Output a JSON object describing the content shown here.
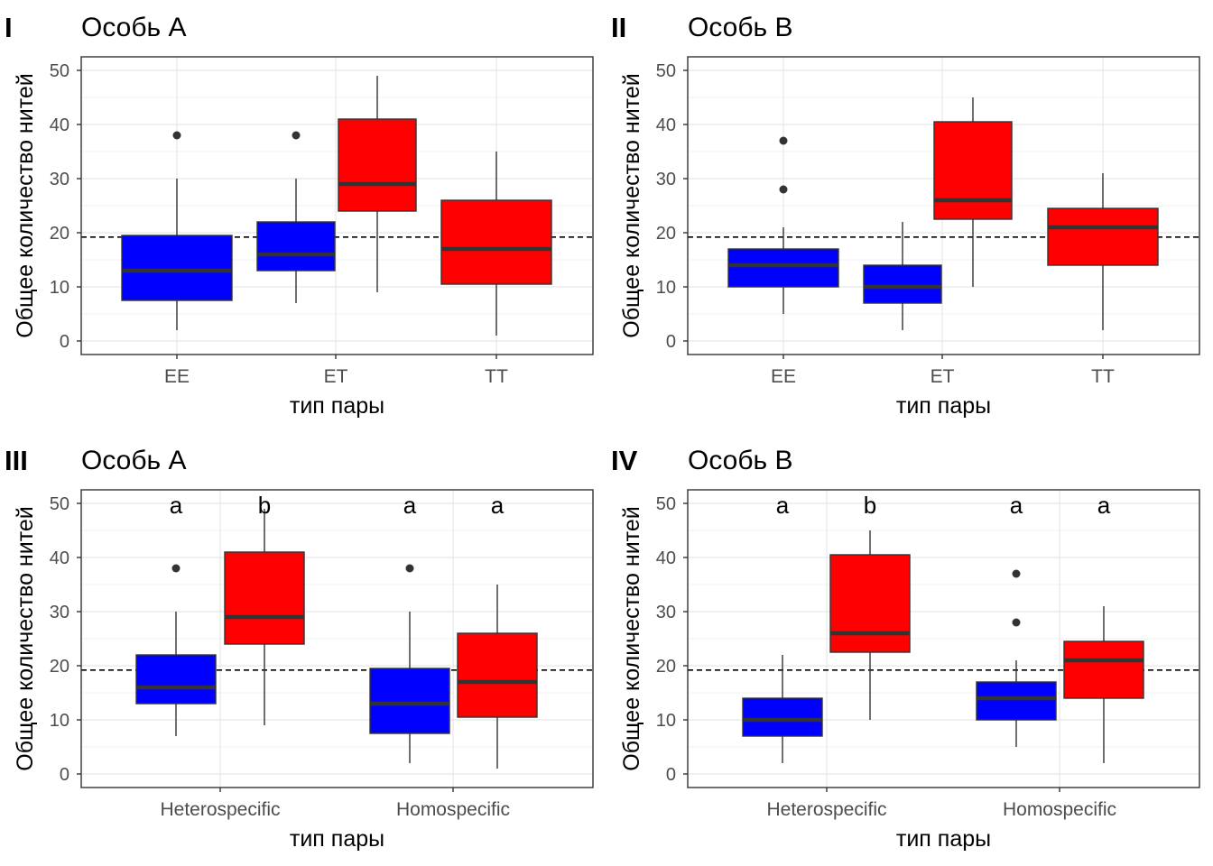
{
  "chart_data": [
    {
      "type": "boxplot",
      "panel_tag": "I",
      "title": "Особь A",
      "xlabel": "тип пары",
      "ylabel": "Общее количество нитей",
      "ylim": [
        -2.5,
        52.5
      ],
      "y_ticks": [
        0,
        10,
        20,
        30,
        40,
        50
      ],
      "reference_line": 19.2,
      "categories": [
        "EE",
        "ET",
        "TT"
      ],
      "boxes": [
        {
          "category": "EE",
          "color": "#0000ff",
          "whisker_low": 2,
          "q1": 7.5,
          "median": 13,
          "q3": 19.5,
          "whisker_high": 30,
          "outliers": [
            38
          ]
        },
        {
          "category": "ET",
          "color": "#0000ff",
          "whisker_low": 7,
          "q1": 13,
          "median": 16,
          "q3": 22,
          "whisker_high": 30,
          "outliers": [
            38
          ]
        },
        {
          "category": "ET",
          "color": "#ff0000",
          "whisker_low": 9,
          "q1": 24,
          "median": 29,
          "q3": 41,
          "whisker_high": 49,
          "outliers": []
        },
        {
          "category": "TT",
          "color": "#ff0000",
          "whisker_low": 1,
          "q1": 10.5,
          "median": 17,
          "q3": 26,
          "whisker_high": 35,
          "outliers": []
        }
      ],
      "letters": []
    },
    {
      "type": "boxplot",
      "panel_tag": "II",
      "title": "Особь B",
      "xlabel": "тип пары",
      "ylabel": "Общее количество нитей",
      "ylim": [
        -2.5,
        52.5
      ],
      "y_ticks": [
        0,
        10,
        20,
        30,
        40,
        50
      ],
      "reference_line": 19.2,
      "categories": [
        "EE",
        "ET",
        "TT"
      ],
      "boxes": [
        {
          "category": "EE",
          "color": "#0000ff",
          "whisker_low": 5,
          "q1": 10,
          "median": 14,
          "q3": 17,
          "whisker_high": 21,
          "outliers": [
            28,
            37
          ]
        },
        {
          "category": "ET",
          "color": "#0000ff",
          "whisker_low": 2,
          "q1": 7,
          "median": 10,
          "q3": 14,
          "whisker_high": 22,
          "outliers": []
        },
        {
          "category": "ET",
          "color": "#ff0000",
          "whisker_low": 10,
          "q1": 22.5,
          "median": 26,
          "q3": 40.5,
          "whisker_high": 45,
          "outliers": []
        },
        {
          "category": "TT",
          "color": "#ff0000",
          "whisker_low": 2,
          "q1": 14,
          "median": 21,
          "q3": 24.5,
          "whisker_high": 31,
          "outliers": []
        }
      ],
      "letters": []
    },
    {
      "type": "boxplot",
      "panel_tag": "III",
      "title": "Особь A",
      "xlabel": "тип пары",
      "ylabel": "Общее количество нитей",
      "ylim": [
        -2.5,
        52.5
      ],
      "y_ticks": [
        0,
        10,
        20,
        30,
        40,
        50
      ],
      "reference_line": 19.2,
      "categories": [
        "Heterospecific",
        "Homospecific"
      ],
      "boxes": [
        {
          "category": "Heterospecific",
          "color": "#0000ff",
          "whisker_low": 7,
          "q1": 13,
          "median": 16,
          "q3": 22,
          "whisker_high": 30,
          "outliers": [
            38
          ]
        },
        {
          "category": "Heterospecific",
          "color": "#ff0000",
          "whisker_low": 9,
          "q1": 24,
          "median": 29,
          "q3": 41,
          "whisker_high": 49,
          "outliers": []
        },
        {
          "category": "Homospecific",
          "color": "#0000ff",
          "whisker_low": 2,
          "q1": 7.5,
          "median": 13,
          "q3": 19.5,
          "whisker_high": 30,
          "outliers": [
            38
          ]
        },
        {
          "category": "Homospecific",
          "color": "#ff0000",
          "whisker_low": 1,
          "q1": 10.5,
          "median": 17,
          "q3": 26,
          "whisker_high": 35,
          "outliers": []
        }
      ],
      "letters": [
        "a",
        "b",
        "a",
        "a"
      ]
    },
    {
      "type": "boxplot",
      "panel_tag": "IV",
      "title": "Особь B",
      "xlabel": "тип пары",
      "ylabel": "Общее количество нитей",
      "ylim": [
        -2.5,
        52.5
      ],
      "y_ticks": [
        0,
        10,
        20,
        30,
        40,
        50
      ],
      "reference_line": 19.2,
      "categories": [
        "Heterospecific",
        "Homospecific"
      ],
      "boxes": [
        {
          "category": "Heterospecific",
          "color": "#0000ff",
          "whisker_low": 2,
          "q1": 7,
          "median": 10,
          "q3": 14,
          "whisker_high": 22,
          "outliers": []
        },
        {
          "category": "Heterospecific",
          "color": "#ff0000",
          "whisker_low": 10,
          "q1": 22.5,
          "median": 26,
          "q3": 40.5,
          "whisker_high": 45,
          "outliers": []
        },
        {
          "category": "Homospecific",
          "color": "#0000ff",
          "whisker_low": 5,
          "q1": 10,
          "median": 14,
          "q3": 17,
          "whisker_high": 21,
          "outliers": [
            28,
            37
          ]
        },
        {
          "category": "Homospecific",
          "color": "#ff0000",
          "whisker_low": 2,
          "q1": 14,
          "median": 21,
          "q3": 24.5,
          "whisker_high": 31,
          "outliers": []
        }
      ],
      "letters": [
        "a",
        "b",
        "a",
        "a"
      ]
    }
  ]
}
